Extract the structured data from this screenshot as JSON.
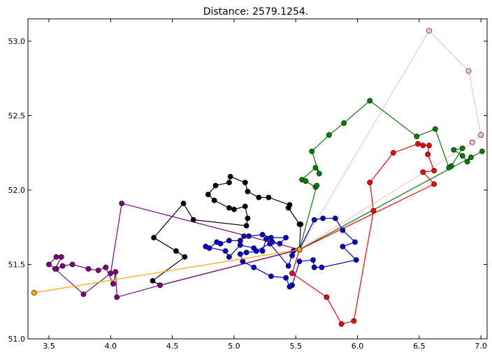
{
  "chart_data": {
    "type": "line",
    "title": "Distance: 2579.1254.",
    "xlabel": "",
    "ylabel": "",
    "xlim": [
      3.33,
      7.05
    ],
    "ylim": [
      51.0,
      53.15
    ],
    "xticks": [
      3.5,
      4.0,
      4.5,
      5.0,
      5.5,
      6.0,
      6.5,
      7.0
    ],
    "yticks": [
      51.0,
      51.5,
      52.0,
      52.5,
      53.0
    ],
    "xtick_labels": [
      "3.5",
      "4.0",
      "4.5",
      "5.0",
      "5.5",
      "6.0",
      "6.5",
      "7.0"
    ],
    "ytick_labels": [
      "51.0",
      "51.5",
      "52.0",
      "52.5",
      "53.0"
    ],
    "grid": false,
    "depot": [
      5.53,
      51.6
    ],
    "series": [
      {
        "color": "#ffc0cb",
        "points": [
          [
            5.53,
            51.6
          ],
          [
            6.58,
            53.07
          ],
          [
            6.9,
            52.8
          ],
          [
            7.0,
            52.37
          ],
          [
            6.93,
            52.32
          ],
          [
            5.53,
            51.6
          ]
        ]
      },
      {
        "color": "#008000",
        "points": [
          [
            5.53,
            51.6
          ],
          [
            7.01,
            52.26
          ],
          [
            6.92,
            52.22
          ],
          [
            6.89,
            52.19
          ],
          [
            6.85,
            52.23
          ],
          [
            6.78,
            52.27
          ],
          [
            6.85,
            52.28
          ],
          [
            6.76,
            52.16
          ],
          [
            6.74,
            52.15
          ],
          [
            6.63,
            52.41
          ],
          [
            6.48,
            52.36
          ],
          [
            6.1,
            52.6
          ],
          [
            5.89,
            52.45
          ],
          [
            5.77,
            52.37
          ],
          [
            5.63,
            52.26
          ],
          [
            5.69,
            52.11
          ],
          [
            5.66,
            52.15
          ],
          [
            5.55,
            52.07
          ],
          [
            5.58,
            52.06
          ],
          [
            5.66,
            52.02
          ],
          [
            5.67,
            52.03
          ],
          [
            5.53,
            51.6
          ]
        ]
      },
      {
        "color": "#ff0000",
        "points": [
          [
            5.53,
            51.6
          ],
          [
            6.62,
            52.04
          ],
          [
            6.53,
            52.12
          ],
          [
            6.62,
            52.13
          ],
          [
            6.57,
            52.24
          ],
          [
            6.58,
            52.3
          ],
          [
            6.53,
            52.3
          ],
          [
            6.49,
            52.31
          ],
          [
            6.29,
            52.25
          ],
          [
            6.1,
            52.05
          ],
          [
            6.13,
            51.86
          ],
          [
            5.97,
            51.12
          ],
          [
            5.87,
            51.1
          ],
          [
            5.75,
            51.28
          ],
          [
            5.47,
            51.44
          ],
          [
            5.53,
            51.6
          ]
        ]
      },
      {
        "color": "#0000cc",
        "points": [
          [
            5.53,
            51.6
          ],
          [
            5.65,
            51.8
          ],
          [
            5.72,
            51.81
          ],
          [
            5.82,
            51.81
          ],
          [
            5.88,
            51.73
          ],
          [
            5.98,
            51.65
          ],
          [
            5.88,
            51.62
          ],
          [
            5.99,
            51.53
          ],
          [
            5.71,
            51.48
          ],
          [
            5.65,
            51.48
          ],
          [
            5.64,
            51.53
          ],
          [
            5.53,
            51.52
          ],
          [
            5.47,
            51.36
          ],
          [
            5.45,
            51.35
          ],
          [
            5.42,
            51.41
          ],
          [
            5.3,
            51.42
          ],
          [
            5.16,
            51.48
          ],
          [
            5.07,
            51.52
          ],
          [
            5.05,
            51.57
          ],
          [
            5.1,
            51.58
          ],
          [
            5.23,
            51.59
          ],
          [
            5.26,
            51.67
          ],
          [
            5.31,
            51.65
          ],
          [
            5.37,
            51.64
          ],
          [
            5.42,
            51.68
          ],
          [
            5.3,
            51.68
          ],
          [
            5.23,
            51.7
          ],
          [
            5.12,
            51.69
          ],
          [
            5.08,
            51.69
          ],
          [
            5.05,
            51.66
          ],
          [
            4.96,
            51.66
          ],
          [
            4.89,
            51.64
          ],
          [
            4.86,
            51.65
          ],
          [
            4.8,
            51.61
          ],
          [
            4.77,
            51.62
          ],
          [
            4.93,
            51.59
          ],
          [
            4.96,
            51.55
          ],
          [
            5.05,
            51.63
          ],
          [
            5.16,
            51.61
          ],
          [
            5.18,
            51.59
          ],
          [
            5.29,
            51.64
          ],
          [
            5.44,
            51.49
          ],
          [
            5.47,
            51.56
          ],
          [
            5.48,
            51.59
          ],
          [
            5.53,
            51.6
          ]
        ]
      },
      {
        "color": "#000000",
        "points": [
          [
            5.53,
            51.6
          ],
          [
            4.4,
            51.36
          ],
          [
            4.34,
            51.39
          ],
          [
            4.6,
            51.55
          ],
          [
            4.53,
            51.59
          ],
          [
            4.35,
            51.68
          ],
          [
            4.59,
            51.91
          ],
          [
            4.67,
            51.8
          ],
          [
            5.1,
            51.76
          ],
          [
            5.11,
            51.81
          ],
          [
            5.09,
            51.89
          ],
          [
            5.0,
            51.87
          ],
          [
            4.96,
            51.88
          ],
          [
            4.84,
            51.93
          ],
          [
            4.79,
            51.97
          ],
          [
            4.85,
            52.03
          ],
          [
            4.96,
            52.05
          ],
          [
            4.97,
            52.09
          ],
          [
            5.09,
            52.05
          ],
          [
            5.11,
            51.99
          ],
          [
            5.2,
            51.95
          ],
          [
            5.28,
            51.95
          ],
          [
            5.45,
            51.9
          ],
          [
            5.44,
            51.88
          ],
          [
            5.53,
            51.77
          ],
          [
            5.54,
            51.77
          ],
          [
            5.53,
            51.6
          ]
        ]
      },
      {
        "color": "#7f007f",
        "points": [
          [
            5.53,
            51.6
          ],
          [
            4.4,
            51.36
          ],
          [
            4.05,
            51.28
          ],
          [
            4.04,
            51.45
          ],
          [
            4.02,
            51.37
          ],
          [
            3.96,
            51.48
          ],
          [
            3.9,
            51.46
          ],
          [
            3.82,
            51.47
          ],
          [
            3.69,
            51.5
          ],
          [
            3.61,
            51.49
          ],
          [
            3.56,
            51.47
          ],
          [
            3.5,
            51.5
          ],
          [
            3.56,
            51.55
          ],
          [
            3.6,
            51.55
          ],
          [
            3.55,
            51.47
          ],
          [
            3.78,
            51.3
          ],
          [
            4.0,
            51.44
          ],
          [
            4.09,
            51.91
          ],
          [
            5.53,
            51.6
          ]
        ]
      },
      {
        "color": "#ffa500",
        "points": [
          [
            5.53,
            51.6
          ],
          [
            3.38,
            51.31
          ],
          [
            5.53,
            51.6
          ]
        ]
      }
    ]
  }
}
